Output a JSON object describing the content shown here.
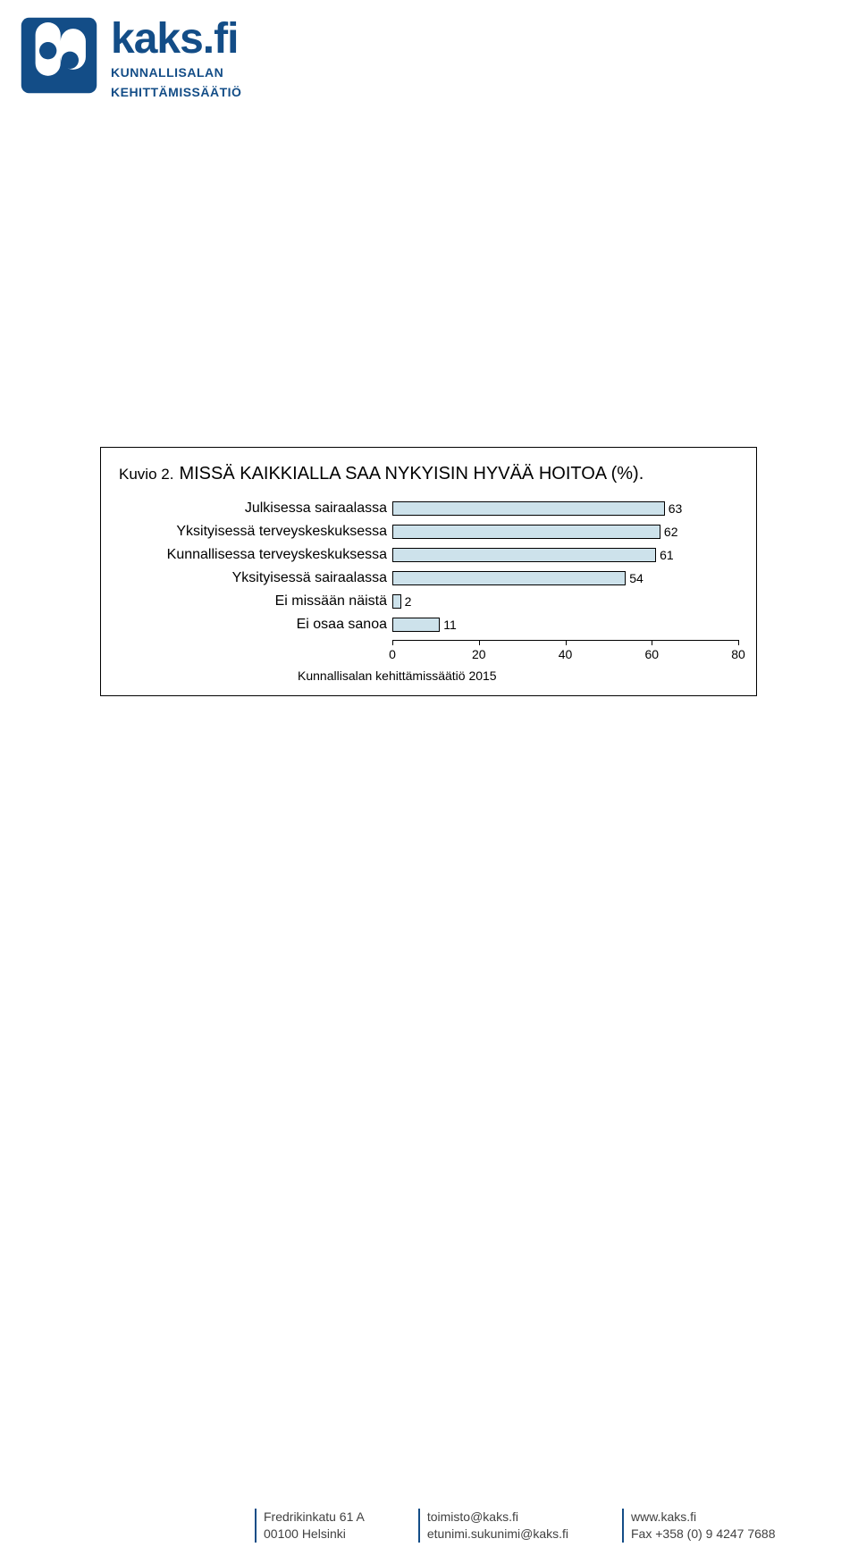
{
  "brand": {
    "title": "kaks.fi",
    "sub1": "KUNNALLISALAN",
    "sub2": "KEHITTÄMISSÄÄTIÖ",
    "logo_blue": "#134d87",
    "logo_white": "#ffffff"
  },
  "chart": {
    "type": "bar",
    "kuvio_label": "Kuvio 2.",
    "title": "MISSÄ KAIKKIALLA SAA NYKYISIN HYVÄÄ HOITOA (%).",
    "categories": [
      "Julkisessa sairaalassa",
      "Yksityisessä terveyskeskuksessa",
      "Kunnallisessa terveyskeskuksessa",
      "Yksityisessä sairaalassa",
      "Ei missään näistä",
      "Ei osaa sanoa"
    ],
    "values": [
      63,
      62,
      61,
      54,
      2,
      11
    ],
    "bar_fill": "#cde2eb",
    "bar_border": "#000000",
    "xlim": [
      0,
      80
    ],
    "xticks": [
      0,
      20,
      40,
      60,
      80
    ],
    "label_fontsize": 16,
    "value_fontsize": 14,
    "title_fontsize": 20,
    "footer": "Kunnallisalan kehittämissäätiö 2015",
    "box_border": "#000000",
    "background": "#ffffff"
  },
  "footer": {
    "col1_line1": "Fredrikinkatu 61 A",
    "col1_line2": "00100 Helsinki",
    "col2_line1": "toimisto@kaks.fi",
    "col2_line2": "etunimi.sukunimi@kaks.fi",
    "col3_line1": "www.kaks.fi",
    "col3_line2": "Fax +358 (0) 9 4247 7688",
    "rule_color": "#134d87",
    "text_color": "#414141"
  }
}
